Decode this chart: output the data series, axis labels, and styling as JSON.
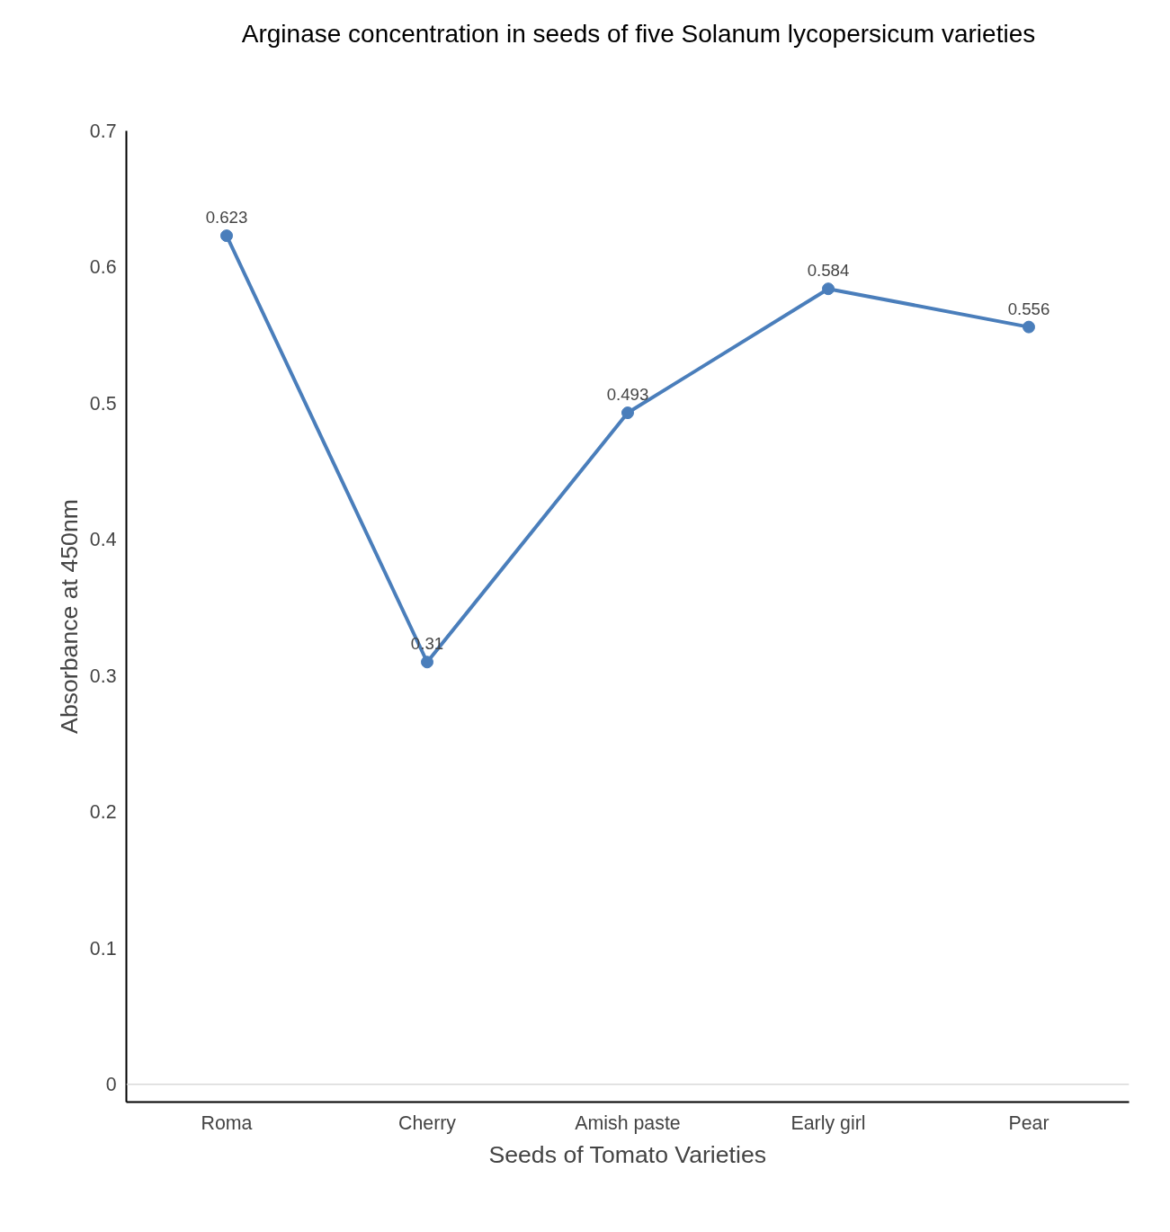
{
  "chart_data": {
    "type": "line",
    "title": "Arginase concentration in seeds of five Solanum lycopersicum varieties",
    "xlabel": "Seeds of Tomato Varieties",
    "ylabel": "Absorbance at 450nm",
    "categories": [
      "Roma",
      "Cherry",
      "Amish paste",
      "Early girl",
      "Pear"
    ],
    "series": [
      {
        "color": "#4a7ebb",
        "values": [
          0.623,
          0.31,
          0.493,
          0.584,
          0.556
        ]
      }
    ],
    "data_labels": true,
    "marker": "circle",
    "line_style": "solid",
    "grid": false,
    "ylim": [
      -0.013,
      0.7
    ],
    "yticks": [
      0,
      0.1,
      0.2,
      0.3,
      0.4,
      0.5,
      0.6,
      0.7
    ],
    "ref_lines": [
      {
        "axis": "y",
        "value": 0,
        "color": "#d9d9d9"
      }
    ]
  }
}
